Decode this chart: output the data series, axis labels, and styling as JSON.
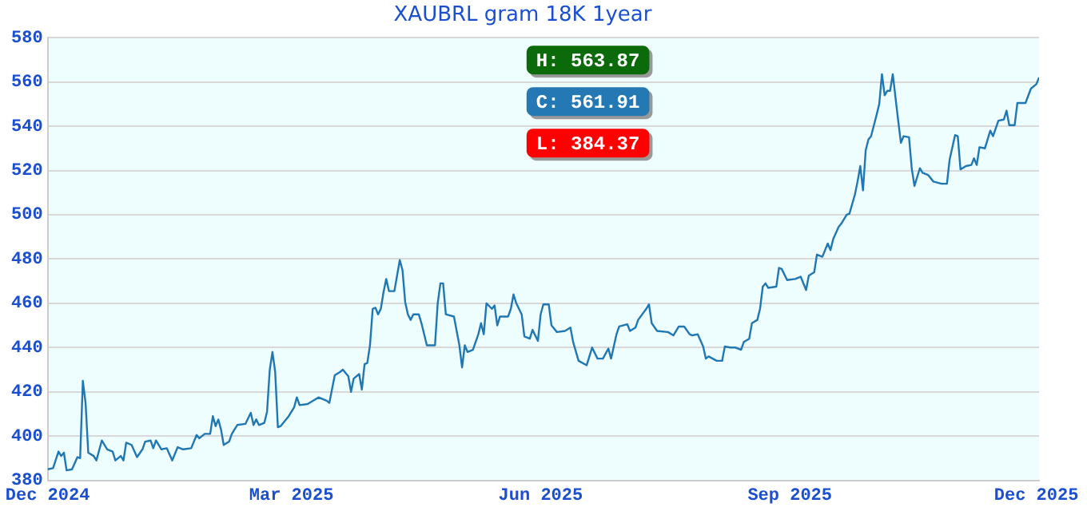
{
  "chart_data": {
    "type": "line",
    "title": "XAUBRL gram 18K 1year",
    "annotations": [
      "H: 563.87",
      "C: 561.91",
      "L: 384.37"
    ],
    "xlim": [
      "2024-12-01",
      "2025-12-02"
    ],
    "xticks": [
      {
        "value": "2024-12-01",
        "label": "Dec 2024"
      },
      {
        "value": "2025-03-01",
        "label": "Mar 2025"
      },
      {
        "value": "2025-06-01",
        "label": "Jun 2025"
      },
      {
        "value": "2025-09-01",
        "label": "Sep 2025"
      },
      {
        "value": "2025-12-01",
        "label": "Dec 2025"
      }
    ],
    "ylim": [
      380,
      580
    ],
    "yticks": [
      380,
      400,
      420,
      440,
      460,
      480,
      500,
      520,
      540,
      560,
      580
    ],
    "grid": "y",
    "marker": "none",
    "line_style": "solid",
    "series": [
      {
        "color": "#1f77b4",
        "x": [
          "2024-12-01",
          "2024-12-03",
          "2024-12-05",
          "2024-12-06",
          "2024-12-07",
          "2024-12-08",
          "2024-12-10",
          "2024-12-12",
          "2024-12-13",
          "2024-12-14",
          "2024-12-15",
          "2024-12-16",
          "2024-12-18",
          "2024-12-19",
          "2024-12-21",
          "2024-12-23",
          "2024-12-25",
          "2024-12-26",
          "2024-12-28",
          "2024-12-29",
          "2024-12-30",
          "2025-01-01",
          "2025-01-03",
          "2025-01-05",
          "2025-01-06",
          "2025-01-08",
          "2025-01-09",
          "2025-01-10",
          "2025-01-12",
          "2025-01-14",
          "2025-01-16",
          "2025-01-18",
          "2025-01-20",
          "2025-01-23",
          "2025-01-25",
          "2025-01-26",
          "2025-01-28",
          "2025-01-30",
          "2025-01-31",
          "2025-02-01",
          "2025-02-02",
          "2025-02-03",
          "2025-02-04",
          "2025-02-06",
          "2025-02-07",
          "2025-02-09",
          "2025-02-12",
          "2025-02-14",
          "2025-02-15",
          "2025-02-16",
          "2025-02-17",
          "2025-02-19",
          "2025-02-20",
          "2025-02-21",
          "2025-02-22",
          "2025-02-23",
          "2025-02-24",
          "2025-02-25",
          "2025-02-28",
          "2025-03-02",
          "2025-03-03",
          "2025-03-04",
          "2025-03-07",
          "2025-03-11",
          "2025-03-14",
          "2025-03-15",
          "2025-03-17",
          "2025-03-19",
          "2025-03-20",
          "2025-03-22",
          "2025-03-23",
          "2025-03-24",
          "2025-03-26",
          "2025-03-27",
          "2025-03-28",
          "2025-03-29",
          "2025-03-30",
          "2025-03-31",
          "2025-04-01",
          "2025-04-02",
          "2025-04-03",
          "2025-04-04",
          "2025-04-05",
          "2025-04-06",
          "2025-04-08",
          "2025-04-09",
          "2025-04-10",
          "2025-04-11",
          "2025-04-12",
          "2025-04-13",
          "2025-04-14",
          "2025-04-15",
          "2025-04-17",
          "2025-04-18",
          "2025-04-20",
          "2025-04-23",
          "2025-04-24",
          "2025-04-25",
          "2025-04-26",
          "2025-04-27",
          "2025-04-30",
          "2025-05-02",
          "2025-05-03",
          "2025-05-04",
          "2025-05-05",
          "2025-05-07",
          "2025-05-09",
          "2025-05-10",
          "2025-05-11",
          "2025-05-12",
          "2025-05-14",
          "2025-05-15",
          "2025-05-16",
          "2025-05-17",
          "2025-05-20",
          "2025-05-21",
          "2025-05-22",
          "2025-05-23",
          "2025-05-25",
          "2025-05-26",
          "2025-05-28",
          "2025-05-29",
          "2025-05-31",
          "2025-06-01",
          "2025-06-02",
          "2025-06-04",
          "2025-06-05",
          "2025-06-07",
          "2025-06-10",
          "2025-06-12",
          "2025-06-13",
          "2025-06-15",
          "2025-06-18",
          "2025-06-20",
          "2025-06-22",
          "2025-06-24",
          "2025-06-26",
          "2025-06-27",
          "2025-06-29",
          "2025-06-30",
          "2025-07-03",
          "2025-07-04",
          "2025-07-06",
          "2025-07-07",
          "2025-07-10",
          "2025-07-11",
          "2025-07-12",
          "2025-07-14",
          "2025-07-18",
          "2025-07-20",
          "2025-07-22",
          "2025-07-24",
          "2025-07-26",
          "2025-07-27",
          "2025-07-29",
          "2025-07-31",
          "2025-08-01",
          "2025-08-02",
          "2025-08-05",
          "2025-08-07",
          "2025-08-08",
          "2025-08-10",
          "2025-08-12",
          "2025-08-14",
          "2025-08-15",
          "2025-08-17",
          "2025-08-18",
          "2025-08-20",
          "2025-08-21",
          "2025-08-22",
          "2025-08-23",
          "2025-08-24",
          "2025-08-27",
          "2025-08-28",
          "2025-08-29",
          "2025-08-31",
          "2025-09-03",
          "2025-09-05",
          "2025-09-07",
          "2025-09-08",
          "2025-09-10",
          "2025-09-11",
          "2025-09-13",
          "2025-09-15",
          "2025-09-16",
          "2025-09-17",
          "2025-09-19",
          "2025-09-20",
          "2025-09-22",
          "2025-09-23",
          "2025-09-25",
          "2025-09-26",
          "2025-09-27",
          "2025-09-28",
          "2025-09-29",
          "2025-09-30",
          "2025-10-01",
          "2025-10-03",
          "2025-10-04",
          "2025-10-05",
          "2025-10-06",
          "2025-10-07",
          "2025-10-08",
          "2025-10-09",
          "2025-10-11",
          "2025-10-12",
          "2025-10-13",
          "2025-10-15",
          "2025-10-16",
          "2025-10-17",
          "2025-10-19",
          "2025-10-20",
          "2025-10-22",
          "2025-10-24",
          "2025-10-27",
          "2025-10-29",
          "2025-10-30",
          "2025-11-01",
          "2025-11-02",
          "2025-11-03",
          "2025-11-05",
          "2025-11-07",
          "2025-11-08",
          "2025-11-09",
          "2025-11-10",
          "2025-11-12",
          "2025-11-14",
          "2025-11-15",
          "2025-11-17",
          "2025-11-19",
          "2025-11-20",
          "2025-11-21",
          "2025-11-23",
          "2025-11-24",
          "2025-11-27",
          "2025-11-29",
          "2025-12-01",
          "2025-12-02"
        ],
        "values": [
          385,
          385.5,
          393,
          391,
          392.5,
          384.5,
          385,
          390.5,
          390,
          425,
          415,
          392.5,
          391,
          389,
          398,
          394,
          393,
          389,
          391,
          389,
          397,
          396,
          390.5,
          394,
          397.5,
          398,
          394.5,
          398,
          394,
          394.5,
          389,
          395,
          394,
          394.5,
          400.5,
          399,
          401,
          401,
          409,
          404.5,
          407.5,
          403,
          396,
          397.5,
          401,
          405,
          405.5,
          410.5,
          405,
          407.5,
          405,
          406,
          411,
          430,
          438,
          429,
          404,
          404.5,
          409,
          413,
          417.5,
          414,
          414.5,
          417.5,
          416,
          415,
          427.5,
          429,
          430,
          427,
          420,
          426,
          428,
          421,
          432.5,
          433,
          441,
          457.5,
          458,
          455,
          457.5,
          465,
          471,
          465.5,
          465.5,
          472.5,
          479.5,
          475,
          460.5,
          455,
          452.5,
          455,
          455,
          451,
          441,
          441,
          460,
          469,
          469,
          455,
          454,
          441,
          431,
          441,
          438,
          439,
          446,
          451,
          446,
          460,
          457.5,
          459,
          450,
          454,
          454,
          457.5,
          464,
          460,
          455,
          445,
          444,
          448,
          443,
          455,
          459.5,
          459.5,
          450,
          447,
          447.5,
          449,
          442.5,
          434,
          432,
          440,
          435,
          435,
          439.5,
          435,
          446,
          449.5,
          450.5,
          447.5,
          449,
          452.5,
          457.5,
          459.5,
          451,
          447.5,
          447,
          445.5,
          449.5,
          449.5,
          446,
          445.5,
          446,
          440.5,
          435,
          436,
          434,
          434,
          440.5,
          440,
          440,
          439,
          442.5,
          444,
          451,
          452.5,
          457.5,
          467.5,
          469,
          467,
          467.5,
          476,
          475.5,
          470.5,
          471,
          472,
          466,
          472.5,
          474,
          482,
          481,
          487,
          484,
          489,
          494.5,
          496,
          500,
          500.5,
          509,
          515,
          522,
          511,
          529,
          534,
          535.5,
          545,
          550,
          563.5,
          554,
          556,
          556,
          563.5,
          542.5,
          532.5,
          535.5,
          535,
          521,
          513,
          521,
          519,
          518,
          515,
          514,
          514,
          525,
          536,
          535.5,
          520.5,
          522,
          522.5,
          525.5,
          522.5,
          530.5,
          530,
          538,
          535.5,
          542.5,
          543,
          547,
          540.5,
          540.5,
          550.5,
          550.5,
          557,
          559,
          562
        ]
      }
    ]
  }
}
